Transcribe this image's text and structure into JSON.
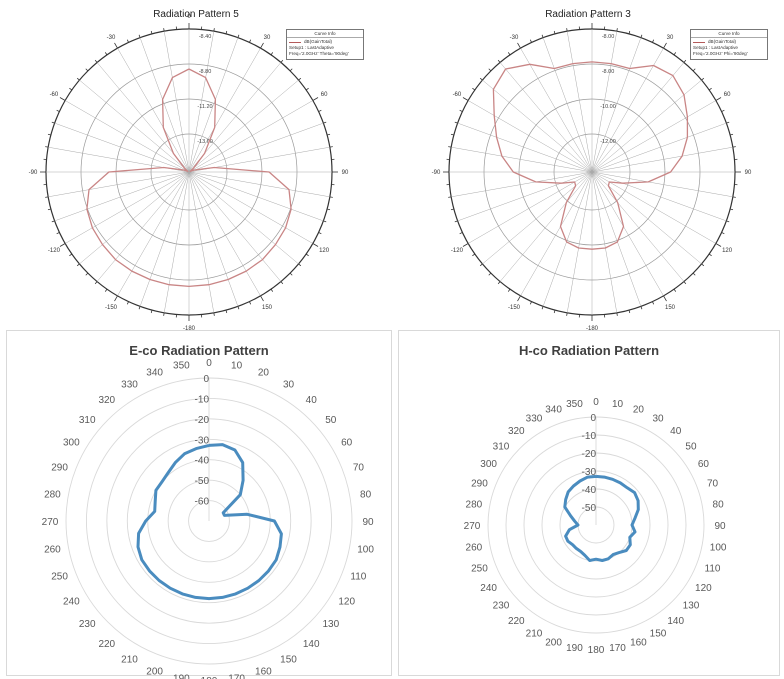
{
  "chart_data": [
    {
      "id": "tl",
      "type": "polar",
      "style": "hfss",
      "title": "Radiation Pattern 5",
      "legend": {
        "header": "Curve Info",
        "series_label": "dB(GainTotal)",
        "lines": [
          "Setup1 : LastAdaptive",
          "Freq='2.0GHz' Theta='90deg'"
        ]
      },
      "angle_labels": [
        "0",
        "30",
        "60",
        "90",
        "120",
        "150",
        "-180",
        "-150",
        "-120",
        "-90",
        "-60",
        "-30"
      ],
      "radial_labels": [
        "-8.40",
        "-8.80",
        "-11.20",
        "-13.60"
      ],
      "rlim": [
        -16,
        -6
      ],
      "series": [
        {
          "color": "#c98585",
          "theta": [
            0,
            10,
            20,
            30,
            40,
            50,
            60,
            70,
            80,
            90,
            100,
            110,
            120,
            130,
            140,
            150,
            160,
            170,
            180,
            190,
            200,
            210,
            220,
            230,
            240,
            250,
            260,
            270,
            280,
            290,
            300,
            310,
            320,
            330,
            340,
            350,
            360
          ],
          "r": [
            -8.8,
            -9.3,
            -10.6,
            -12.4,
            -14.3,
            -15.6,
            -15.9,
            -15.6,
            -14.2,
            -10.4,
            -8.9,
            -8.4,
            -8.2,
            -8.1,
            -8.0,
            -8.0,
            -8.0,
            -8.0,
            -8.0,
            -8.0,
            -8.0,
            -8.0,
            -8.0,
            -8.1,
            -8.2,
            -8.4,
            -8.9,
            -10.4,
            -14.2,
            -15.6,
            -15.9,
            -15.6,
            -14.3,
            -12.4,
            -10.6,
            -9.3,
            -8.8
          ]
        }
      ]
    },
    {
      "id": "tr",
      "type": "polar",
      "style": "hfss",
      "title": "Radiation Pattern 3",
      "legend": {
        "header": "Curve Info",
        "series_label": "dB(GainTotal)",
        "lines": [
          "Setup1 : LastAdaptive",
          "Freq='2.0GHz' Phi='90deg'"
        ]
      },
      "angle_labels": [
        "0",
        "30",
        "60",
        "90",
        "120",
        "150",
        "-180",
        "-150",
        "-120",
        "-90",
        "-60",
        "-30"
      ],
      "radial_labels": [
        "-8.00",
        "-8.00",
        "-10.00",
        "-12.00"
      ],
      "rlim": [
        -14,
        -4
      ],
      "series": [
        {
          "color": "#c98585",
          "theta": [
            0,
            10,
            20,
            30,
            40,
            50,
            60,
            70,
            80,
            90,
            100,
            110,
            120,
            130,
            140,
            150,
            160,
            170,
            180,
            190,
            200,
            210,
            220,
            230,
            240,
            250,
            260,
            270,
            280,
            290,
            300,
            310,
            320,
            330,
            340,
            350,
            360
          ],
          "r": [
            -6.3,
            -6.3,
            -6.3,
            -5.4,
            -5.2,
            -5.6,
            -6.3,
            -6.9,
            -7.6,
            -8.5,
            -10.0,
            -11.7,
            -12.6,
            -12.5,
            -11.2,
            -9.6,
            -8.8,
            -8.6,
            -8.6,
            -8.6,
            -8.8,
            -9.6,
            -11.2,
            -12.5,
            -12.6,
            -11.7,
            -10.0,
            -8.5,
            -7.6,
            -6.9,
            -6.1,
            -5.0,
            -4.6,
            -5.3,
            -6.3,
            -6.3,
            -6.3
          ]
        }
      ]
    },
    {
      "id": "bl",
      "type": "polar",
      "style": "excel",
      "title": "E-co Radiation Pattern",
      "angle_labels": [
        "0",
        "10",
        "20",
        "30",
        "40",
        "50",
        "60",
        "70",
        "80",
        "90",
        "100",
        "110",
        "120",
        "130",
        "140",
        "150",
        "160",
        "170",
        "180",
        "190",
        "200",
        "210",
        "220",
        "230",
        "240",
        "250",
        "260",
        "270",
        "280",
        "290",
        "300",
        "310",
        "320",
        "330",
        "340",
        "350"
      ],
      "radial_labels": [
        "-60",
        "-50",
        "-40",
        "-30",
        "-20",
        "-10",
        "0"
      ],
      "rlim": [
        -70,
        0
      ],
      "series": [
        {
          "color": "#4a8cbf",
          "theta": [
            0,
            10,
            20,
            30,
            40,
            50,
            60,
            70,
            80,
            90,
            100,
            110,
            120,
            130,
            140,
            150,
            160,
            170,
            180,
            190,
            200,
            210,
            220,
            230,
            240,
            250,
            260,
            270,
            280,
            290,
            300,
            310,
            320,
            330,
            340,
            350,
            360
          ],
          "r": [
            -33,
            -32,
            -33,
            -37,
            -44,
            -50,
            -62,
            -62,
            -51,
            -38,
            -34,
            -33,
            -32,
            -32,
            -32,
            -32,
            -32,
            -32,
            -32,
            -32,
            -32,
            -32,
            -32,
            -32,
            -32,
            -33,
            -35,
            -39,
            -43,
            -42,
            -40,
            -40,
            -39,
            -37,
            -35,
            -34,
            -33
          ]
        }
      ]
    },
    {
      "id": "br",
      "type": "polar",
      "style": "excel",
      "title": "H-co Radiation Pattern",
      "angle_labels": [
        "0",
        "10",
        "20",
        "30",
        "40",
        "50",
        "60",
        "70",
        "80",
        "90",
        "100",
        "110",
        "120",
        "130",
        "140",
        "150",
        "160",
        "170",
        "180",
        "190",
        "200",
        "210",
        "220",
        "230",
        "240",
        "250",
        "260",
        "270",
        "280",
        "290",
        "300",
        "310",
        "320",
        "330",
        "340",
        "350"
      ],
      "radial_labels": [
        "-50",
        "-40",
        "-30",
        "-20",
        "-10",
        "0"
      ],
      "rlim": [
        -60,
        0
      ],
      "series": [
        {
          "color": "#4a8cbf",
          "theta": [
            0,
            10,
            20,
            30,
            40,
            50,
            60,
            70,
            80,
            90,
            100,
            110,
            120,
            130,
            140,
            150,
            160,
            170,
            180,
            190,
            200,
            210,
            220,
            230,
            240,
            250,
            260,
            270,
            280,
            290,
            300,
            310,
            320,
            330,
            340,
            350,
            360
          ],
          "r": [
            -33,
            -33,
            -33,
            -33,
            -33,
            -32,
            -33,
            -35,
            -38,
            -40,
            -38,
            -40,
            -38,
            -38,
            -40,
            -41,
            -40,
            -40,
            -41,
            -40,
            -42,
            -43,
            -43,
            -43,
            -42,
            -42,
            -45,
            -50,
            -48,
            -45,
            -40,
            -38,
            -36,
            -35,
            -34,
            -33,
            -33
          ]
        }
      ]
    }
  ]
}
